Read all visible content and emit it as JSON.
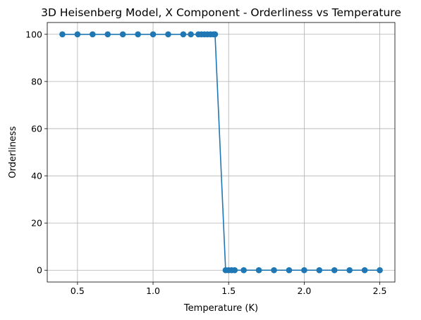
{
  "chart_data": {
    "type": "line",
    "title": "3D Heisenberg Model, X Component - Orderliness vs Temperature",
    "xlabel": "Temperature (K)",
    "ylabel": "Orderliness",
    "xlim": [
      0.3,
      2.6
    ],
    "ylim": [
      -5,
      105
    ],
    "xticks": [
      0.5,
      1.0,
      1.5,
      2.0,
      2.5
    ],
    "xtick_labels": [
      "0.5",
      "1.0",
      "1.5",
      "2.0",
      "2.5"
    ],
    "yticks": [
      0,
      20,
      40,
      60,
      80,
      100
    ],
    "ytick_labels": [
      "0",
      "20",
      "40",
      "60",
      "80",
      "100"
    ],
    "grid": true,
    "series": [
      {
        "color": "#1f77b4",
        "marker": "circle",
        "x": [
          0.4,
          0.5,
          0.6,
          0.7,
          0.8,
          0.9,
          1.0,
          1.1,
          1.2,
          1.25,
          1.3,
          1.32,
          1.34,
          1.36,
          1.38,
          1.4,
          1.41,
          1.48,
          1.5,
          1.52,
          1.54,
          1.6,
          1.7,
          1.8,
          1.9,
          2.0,
          2.1,
          2.2,
          2.3,
          2.4,
          2.5
        ],
        "y": [
          100,
          100,
          100,
          100,
          100,
          100,
          100,
          100,
          100,
          100,
          100,
          100,
          100,
          100,
          100,
          100,
          100,
          0,
          0,
          0,
          0,
          0,
          0,
          0,
          0,
          0,
          0,
          0,
          0,
          0,
          0
        ]
      }
    ]
  }
}
